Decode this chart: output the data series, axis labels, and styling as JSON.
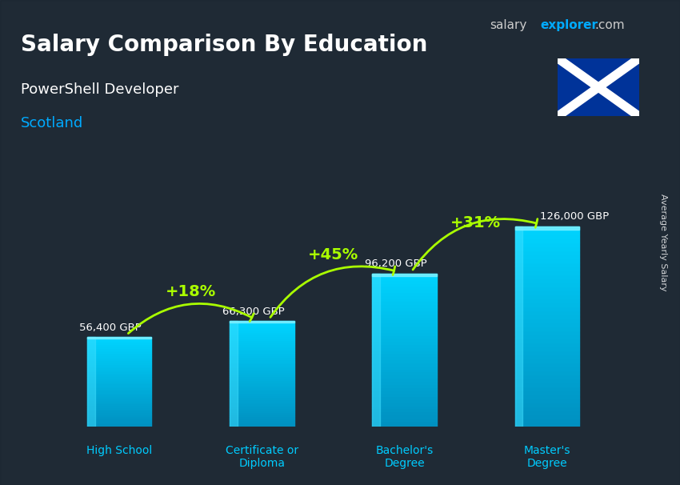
{
  "title": "Salary Comparison By Education",
  "subtitle": "PowerShell Developer",
  "location": "Scotland",
  "ylabel": "Average Yearly Salary",
  "categories": [
    "High School",
    "Certificate or\nDiploma",
    "Bachelor's\nDegree",
    "Master's\nDegree"
  ],
  "values": [
    56400,
    66300,
    96200,
    126000
  ],
  "labels": [
    "56,400 GBP",
    "66,300 GBP",
    "96,200 GBP",
    "126,000 GBP"
  ],
  "pct_labels": [
    "+18%",
    "+45%",
    "+31%"
  ],
  "bar_color_top": "#00d4ff",
  "bar_color_bottom": "#0077aa",
  "background_color": "#1a1a2e",
  "title_color": "#ffffff",
  "subtitle_color": "#ffffff",
  "location_color": "#00aaff",
  "label_color": "#ffffff",
  "pct_color": "#aaff00",
  "arrow_color": "#aaff00",
  "xticklabel_color": "#00ccff",
  "site_color_salary": "#cccccc",
  "site_color_explorer": "#00aaff",
  "site_text": "salaryexplorer.com"
}
